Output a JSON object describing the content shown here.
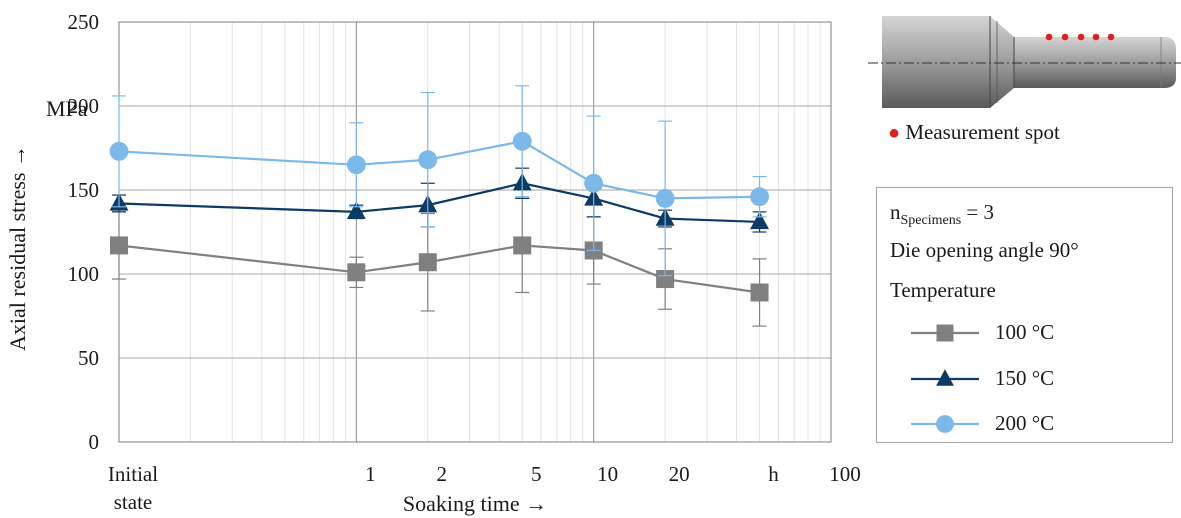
{
  "chart_data": {
    "type": "line",
    "xlabel": "Soaking time →",
    "ylabel": "Axial residual stress →",
    "y_unit_label": "MPa",
    "ylim": [
      0,
      250
    ],
    "yticks": [
      0,
      50,
      100,
      150,
      200,
      250
    ],
    "x_scale": "log",
    "xlim": [
      0.1,
      100
    ],
    "x_tick_labels": [
      {
        "x": 0.1,
        "label": "Initial",
        "label2": "state"
      },
      {
        "x": 1,
        "label": "1"
      },
      {
        "x": 2,
        "label": "2"
      },
      {
        "x": 5,
        "label": "5"
      },
      {
        "x": 10,
        "label": "10"
      },
      {
        "x": 20,
        "label": "20"
      },
      {
        "x": 50,
        "label": "h"
      },
      {
        "x": 100,
        "label": "100"
      }
    ],
    "grid": true,
    "series": [
      {
        "name": "100 °C",
        "color": "#808080",
        "marker": "square",
        "x": [
          0.1,
          1,
          2,
          5,
          10,
          20,
          50
        ],
        "y": [
          117,
          101,
          107,
          117,
          114,
          97,
          89
        ],
        "err": [
          20,
          9,
          29,
          28,
          20,
          18,
          20
        ]
      },
      {
        "name": "150 °C",
        "color": "#0d3b66",
        "marker": "triangle",
        "x": [
          0.1,
          1,
          2,
          5,
          10,
          20,
          50
        ],
        "y": [
          142,
          137,
          141,
          154,
          145,
          133,
          131
        ],
        "err": [
          5,
          4,
          13,
          9,
          11,
          5,
          6
        ]
      },
      {
        "name": "200 °C",
        "color": "#7cb9e8",
        "marker": "circle",
        "x": [
          0.1,
          1,
          2,
          5,
          10,
          20,
          50
        ],
        "y": [
          173,
          165,
          168,
          179,
          154,
          145,
          146
        ],
        "err": [
          33,
          25,
          40,
          33,
          40,
          46,
          12
        ]
      }
    ]
  },
  "legend": {
    "n_label": "n",
    "n_sub": "Specimens",
    "n_value": " = 3",
    "angle": "Die opening angle 90°",
    "temperature": "Temperature"
  },
  "inset": {
    "caption": "Measurement spot",
    "spot_color": "#e02020"
  }
}
